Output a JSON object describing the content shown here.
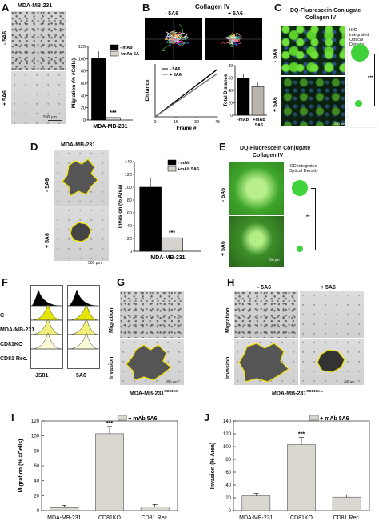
{
  "panels": {
    "A": {
      "label": "A",
      "title": "MDA-MB-231",
      "row_top": "- 5A6",
      "row_bottom": "+ 5A6",
      "scale": "500 µm",
      "chart_data": {
        "type": "bar",
        "categories": [
          "MDA-MB-231"
        ],
        "series": [
          {
            "name": "- mAb",
            "values": [
              100
            ]
          },
          {
            "name": "+mAb 5A6",
            "values": [
              4
            ]
          }
        ],
        "ylabel": "Migration (% #Cells)",
        "xlabel": "MDA-MB-231",
        "ylim": [
          0,
          120
        ],
        "yticks": [
          "0",
          "20",
          "40",
          "60",
          "80",
          "100",
          "120"
        ],
        "annotation": "***"
      }
    },
    "B": {
      "label": "B",
      "title": "Collagen IV",
      "col_left": "- 5A6",
      "col_right": "+ 5A6",
      "line_chart": {
        "type": "line",
        "series": [
          {
            "name": "- 5A6"
          },
          {
            "name": "+ 5A6"
          }
        ],
        "xlabel": "Frame #",
        "ylabel": "Distance",
        "xticks": [
          "0",
          "15",
          "30",
          "45"
        ]
      },
      "bar_chart": {
        "type": "bar",
        "categories": [
          "-mAb",
          "+mAb 5A6"
        ],
        "values": [
          60,
          46
        ],
        "ylabel": "Total Distance",
        "ylim": [
          0,
          80
        ],
        "yticks": [
          "0",
          "20",
          "40",
          "60",
          "80"
        ]
      }
    },
    "C": {
      "label": "C",
      "title_1": "DQ-Fluorescein Conjugate",
      "title_2": "Collagen IV",
      "row_top": "- 5A6",
      "row_bottom": "+ 5A6",
      "legend": "IOD integrated Optical Density",
      "annotation": "***",
      "scale": "250 µm"
    },
    "D": {
      "label": "D",
      "title": "MDA-MB-231",
      "row_top": "- 5A6",
      "row_bottom": "+ 5A6",
      "scale": "500 µm",
      "chart_data": {
        "type": "bar",
        "categories": [
          "MDA-MB-231"
        ],
        "series": [
          {
            "name": "- mAb",
            "values": [
              100
            ]
          },
          {
            "name": "+mAb 5A6",
            "values": [
              21
            ]
          }
        ],
        "ylabel": "Invasion (% Area)",
        "xlabel": "MDA-MB-231",
        "ylim": [
          0,
          140
        ],
        "yticks": [
          "0",
          "20",
          "40",
          "60",
          "80",
          "100",
          "120",
          "140"
        ],
        "annotation": "***"
      }
    },
    "E": {
      "label": "E",
      "title_1": "DQ-Fluorescein Conjugate",
      "title_2": "Collagen IV",
      "row_top": "- 5A6",
      "row_bottom": "+ 5A6",
      "legend": "IOD integrated Optical Density",
      "annotation": "**",
      "scale": "250 µm"
    },
    "F": {
      "label": "F",
      "rows": [
        "C",
        "MDA-MB-231",
        "CD81KO",
        "CD81 Rec."
      ],
      "x_labels": [
        "JS81",
        "5A6"
      ]
    },
    "G": {
      "label": "G",
      "row_top": "Migration",
      "row_bottom": "Invasion",
      "caption": "MDA-MB-231",
      "caption_sup": "CD81KO",
      "scale": "250 µm"
    },
    "H": {
      "label": "H",
      "col_left": "- 5A6",
      "col_right": "+ 5A6",
      "row_top": "Migration",
      "row_bottom": "Invasion",
      "caption": "MDA-MB-231",
      "caption_sup": "CD81Rec.",
      "scale": "250 µm"
    },
    "I": {
      "label": "I",
      "chart_data": {
        "type": "bar",
        "categories": [
          "MDA-MB-231",
          "CD81KO",
          "CD81 Rec."
        ],
        "series": [
          {
            "name": "+ mAb 5A6",
            "values": [
              4,
              103,
              5
            ]
          }
        ],
        "ylabel": "Migration (% #Cells)",
        "ylim": [
          0,
          120
        ],
        "yticks": [
          "0",
          "20",
          "40",
          "60",
          "80",
          "100",
          "120"
        ],
        "annotation": "***"
      }
    },
    "J": {
      "label": "J",
      "chart_data": {
        "type": "bar",
        "categories": [
          "MDA-MB-231",
          "CD81KO",
          "CD81 Rec."
        ],
        "series": [
          {
            "name": "+ mAb 5A6",
            "values": [
              23,
              103,
              21
            ]
          }
        ],
        "ylabel": "Invasion (% Area)",
        "ylim": [
          0,
          140
        ],
        "yticks": [
          "0",
          "20",
          "40",
          "60",
          "80",
          "100",
          "120",
          "140"
        ],
        "annotation": "***"
      }
    }
  }
}
